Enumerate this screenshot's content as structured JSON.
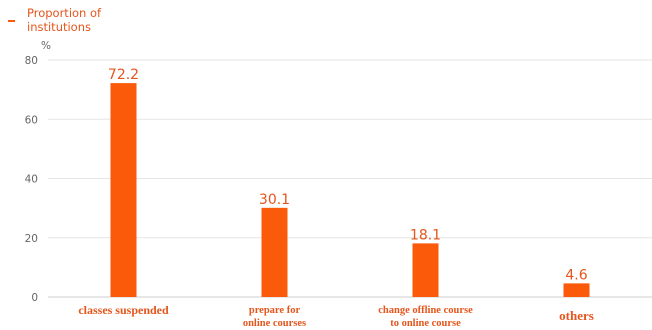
{
  "colors": {
    "bar": "#fa5a0a",
    "label": "#e5551c",
    "axis": "#666666",
    "grid": "#e6e6e6",
    "axisline": "#cfcfcf"
  },
  "legend": {
    "label": "Proportion of\ninstitutions"
  },
  "chart_data": {
    "type": "bar",
    "ylabel": "%",
    "ylim": [
      0,
      80
    ],
    "yticks": [
      0,
      20,
      40,
      60,
      80
    ],
    "grid": true,
    "legend_position": "top-left",
    "categories": [
      [
        "classes suspended"
      ],
      [
        "prepare for",
        "online courses"
      ],
      [
        "change offline course",
        "to online course"
      ],
      [
        "others"
      ]
    ],
    "series": [
      {
        "name": "Proportion of institutions",
        "values": [
          72.2,
          30.1,
          18.1,
          4.6
        ]
      }
    ]
  }
}
